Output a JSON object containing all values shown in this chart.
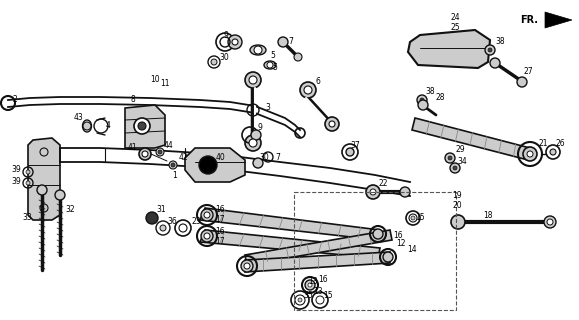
{
  "bg_color": "#ffffff",
  "fig_width": 5.79,
  "fig_height": 3.2,
  "dpi": 100
}
